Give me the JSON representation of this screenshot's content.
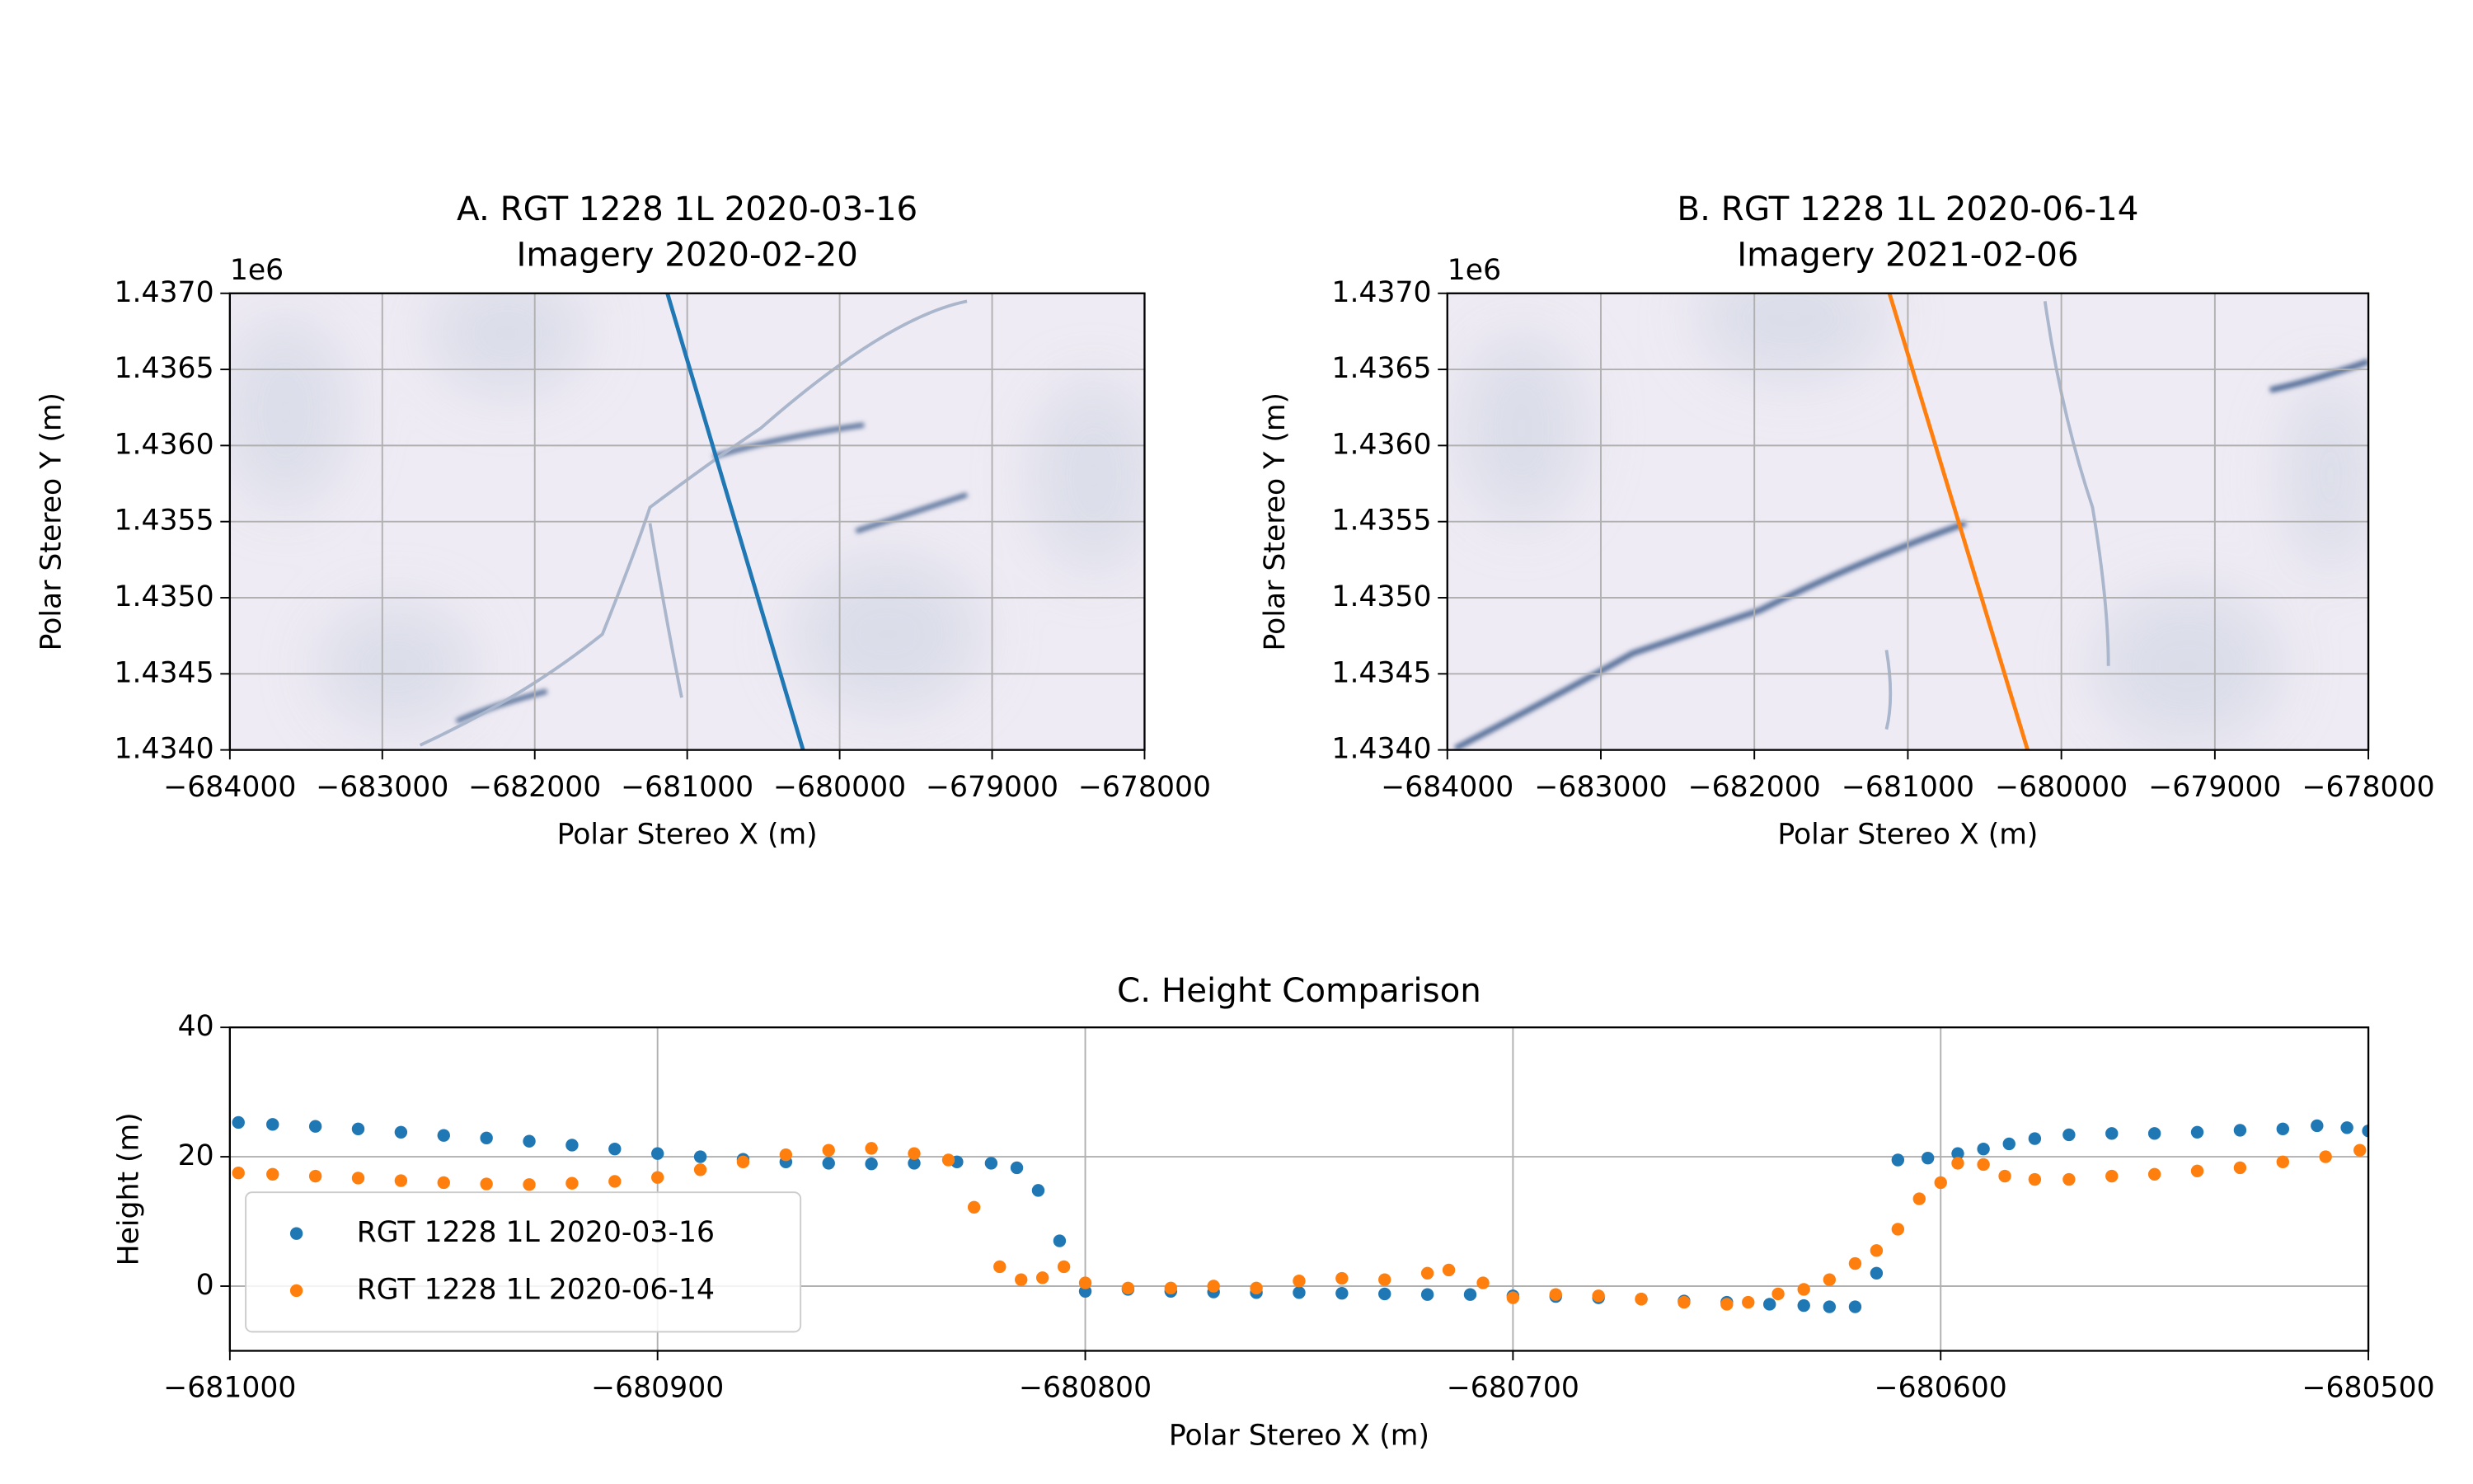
{
  "chart_data": [
    {
      "type": "line",
      "title": "A. RGT 1228 1L 2020-03-16",
      "subtitle": "Imagery 2020-02-20",
      "x_label": "Polar Stereo X (m)",
      "y_label": "Polar Stereo Y (m)",
      "y_offset_label": "1e6",
      "xlim": [
        -684000,
        -678000
      ],
      "ylim": [
        1434000,
        1437000
      ],
      "xticks": [
        {
          "value": -684000,
          "label": "−684000"
        },
        {
          "value": -683000,
          "label": "−683000"
        },
        {
          "value": -682000,
          "label": "−682000"
        },
        {
          "value": -681000,
          "label": "−681000"
        },
        {
          "value": -680000,
          "label": "−680000"
        },
        {
          "value": -679000,
          "label": "−679000"
        },
        {
          "value": -678000,
          "label": "−678000"
        }
      ],
      "yticks": [
        {
          "value": 1434000,
          "label": "1.4340"
        },
        {
          "value": 1434500,
          "label": "1.4345"
        },
        {
          "value": 1435000,
          "label": "1.4350"
        },
        {
          "value": 1435500,
          "label": "1.4355"
        },
        {
          "value": 1436000,
          "label": "1.4360"
        },
        {
          "value": 1436500,
          "label": "1.4365"
        },
        {
          "value": 1437000,
          "label": "1.4370"
        }
      ],
      "grid": true,
      "series": [
        {
          "color": "#1f77b4",
          "x": [
            -681130,
            -680240
          ],
          "values": [
            1437000,
            1434000
          ]
        }
      ]
    },
    {
      "type": "line",
      "title": "B. RGT 1228 1L 2020-06-14",
      "subtitle": "Imagery 2021-02-06",
      "x_label": "Polar Stereo X (m)",
      "y_label": "Polar Stereo Y (m)",
      "y_offset_label": "1e6",
      "xlim": [
        -684000,
        -678000
      ],
      "ylim": [
        1434000,
        1437000
      ],
      "xticks": [
        {
          "value": -684000,
          "label": "−684000"
        },
        {
          "value": -683000,
          "label": "−683000"
        },
        {
          "value": -682000,
          "label": "−682000"
        },
        {
          "value": -681000,
          "label": "−681000"
        },
        {
          "value": -680000,
          "label": "−680000"
        },
        {
          "value": -679000,
          "label": "−679000"
        },
        {
          "value": -678000,
          "label": "−678000"
        }
      ],
      "yticks": [
        {
          "value": 1434000,
          "label": "1.4340"
        },
        {
          "value": 1434500,
          "label": "1.4345"
        },
        {
          "value": 1435000,
          "label": "1.4350"
        },
        {
          "value": 1435500,
          "label": "1.4355"
        },
        {
          "value": 1436000,
          "label": "1.4360"
        },
        {
          "value": 1436500,
          "label": "1.4365"
        },
        {
          "value": 1437000,
          "label": "1.4370"
        }
      ],
      "grid": true,
      "series": [
        {
          "color": "#ff7f0e",
          "x": [
            -681120,
            -680220
          ],
          "values": [
            1437000,
            1434000
          ]
        }
      ]
    },
    {
      "type": "scatter",
      "title": "C. Height Comparison",
      "x_label": "Polar Stereo X (m)",
      "y_label": "Height (m)",
      "xlim": [
        -681000,
        -680500
      ],
      "ylim": [
        -10,
        40
      ],
      "xticks": [
        {
          "value": -681000,
          "label": "−681000"
        },
        {
          "value": -680900,
          "label": "−680900"
        },
        {
          "value": -680800,
          "label": "−680800"
        },
        {
          "value": -680700,
          "label": "−680700"
        },
        {
          "value": -680600,
          "label": "−680600"
        },
        {
          "value": -680500,
          "label": "−680500"
        }
      ],
      "yticks": [
        0,
        20,
        40
      ],
      "grid": true,
      "legend": "lower left",
      "series": [
        {
          "name": "RGT 1228 1L 2020-03-16",
          "color": "#1f77b4",
          "x": [
            -680998,
            -680990,
            -680980,
            -680970,
            -680960,
            -680950,
            -680940,
            -680930,
            -680920,
            -680910,
            -680900,
            -680890,
            -680880,
            -680870,
            -680860,
            -680850,
            -680840,
            -680830,
            -680822,
            -680816,
            -680811,
            -680806,
            -680800,
            -680790,
            -680780,
            -680770,
            -680760,
            -680750,
            -680740,
            -680730,
            -680720,
            -680710,
            -680700,
            -680690,
            -680680,
            -680670,
            -680660,
            -680650,
            -680640,
            -680632,
            -680626,
            -680620,
            -680615,
            -680610,
            -680603,
            -680596,
            -680590,
            -680584,
            -680578,
            -680570,
            -680560,
            -680550,
            -680540,
            -680530,
            -680520,
            -680512,
            -680505,
            -680500
          ],
          "values": [
            25.3,
            25,
            24.7,
            24.3,
            23.8,
            23.3,
            22.9,
            22.4,
            21.8,
            21.2,
            20.5,
            20,
            19.6,
            19.2,
            19,
            18.9,
            19,
            19.2,
            19,
            18.3,
            14.8,
            7,
            -0.8,
            -0.5,
            -0.8,
            -0.9,
            -1,
            -1,
            -1.1,
            -1.2,
            -1.3,
            -1.3,
            -1.5,
            -1.6,
            -1.8,
            -2,
            -2.3,
            -2.5,
            -2.8,
            -3,
            -3.2,
            -3.2,
            2,
            19.5,
            19.8,
            20.5,
            21.2,
            22,
            22.8,
            23.4,
            23.6,
            23.6,
            23.8,
            24.1,
            24.3,
            24.8,
            24.5,
            24
          ]
        },
        {
          "name": "RGT 1228 1L 2020-06-14",
          "color": "#ff7f0e",
          "x": [
            -680998,
            -680990,
            -680980,
            -680970,
            -680960,
            -680950,
            -680940,
            -680930,
            -680920,
            -680910,
            -680900,
            -680890,
            -680880,
            -680870,
            -680860,
            -680850,
            -680840,
            -680832,
            -680826,
            -680820,
            -680815,
            -680810,
            -680805,
            -680800,
            -680790,
            -680780,
            -680770,
            -680760,
            -680750,
            -680740,
            -680730,
            -680720,
            -680715,
            -680707,
            -680700,
            -680690,
            -680680,
            -680670,
            -680660,
            -680650,
            -680645,
            -680638,
            -680632,
            -680626,
            -680620,
            -680615,
            -680610,
            -680605,
            -680600,
            -680596,
            -680590,
            -680585,
            -680578,
            -680570,
            -680560,
            -680550,
            -680540,
            -680530,
            -680520,
            -680510,
            -680502
          ],
          "values": [
            17.5,
            17.3,
            17,
            16.7,
            16.3,
            16,
            15.8,
            15.7,
            15.9,
            16.2,
            16.8,
            18,
            19.2,
            20.3,
            21,
            21.3,
            20.5,
            19.5,
            12.2,
            3,
            1,
            1.3,
            3,
            0.5,
            -0.3,
            -0.3,
            0,
            -0.3,
            0.8,
            1.2,
            1,
            2,
            2.5,
            0.5,
            -1.8,
            -1.3,
            -1.5,
            -2,
            -2.5,
            -2.8,
            -2.5,
            -1.2,
            -0.5,
            1,
            3.5,
            5.5,
            8.8,
            13.5,
            16,
            19,
            18.8,
            17,
            16.5,
            16.5,
            17,
            17.3,
            17.8,
            18.3,
            19.2,
            20,
            21
          ]
        }
      ]
    }
  ]
}
